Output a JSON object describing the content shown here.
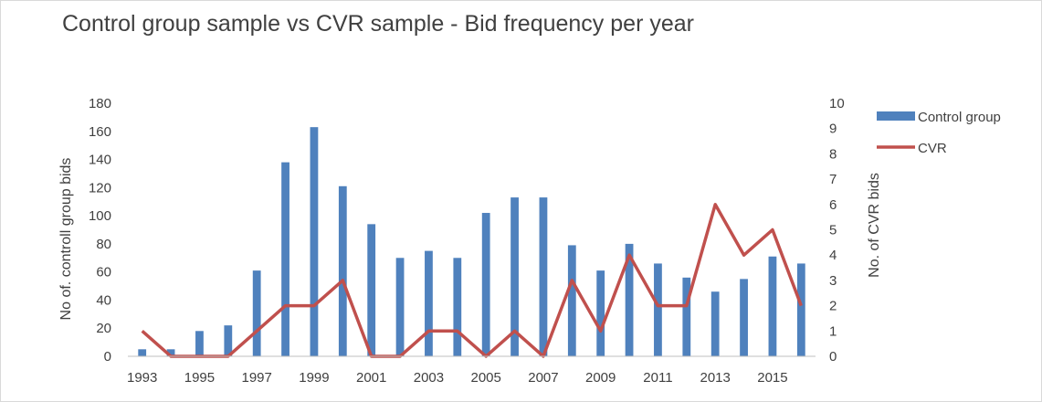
{
  "chart_data": {
    "type": "bar",
    "title": "Control group sample vs CVR sample - Bid frequency per year",
    "categories": [
      "1993",
      "1994",
      "1995",
      "1996",
      "1997",
      "1998",
      "1999",
      "2000",
      "2001",
      "2002",
      "2003",
      "2004",
      "2005",
      "2006",
      "2007",
      "2008",
      "2009",
      "2010",
      "2011",
      "2012",
      "2013",
      "2014",
      "2015",
      "2016"
    ],
    "x_tick_labels": [
      "1993",
      "1995",
      "1997",
      "1999",
      "2001",
      "2003",
      "2005",
      "2007",
      "2009",
      "2011",
      "2013",
      "2015"
    ],
    "series": [
      {
        "name": "Control group",
        "type": "bar",
        "axis": "left",
        "color": "#4f81bd",
        "values": [
          5,
          5,
          18,
          22,
          61,
          138,
          163,
          121,
          94,
          70,
          75,
          70,
          102,
          113,
          113,
          79,
          61,
          80,
          66,
          56,
          46,
          55,
          71,
          66
        ]
      },
      {
        "name": "CVR",
        "type": "line",
        "axis": "right",
        "color": "#c0504d",
        "values": [
          1,
          0,
          0,
          0,
          1,
          2,
          2,
          3,
          0,
          0,
          1,
          1,
          0,
          1,
          0,
          3,
          1,
          4,
          2,
          2,
          6,
          4,
          5,
          2
        ]
      }
    ],
    "ylabel_left": "No of. controll  group bids",
    "ylabel_right": "No. of CVR bids",
    "ylim_left": [
      0,
      180
    ],
    "ylim_right": [
      0,
      10
    ],
    "left_ticks": [
      "0",
      "20",
      "40",
      "60",
      "80",
      "100",
      "120",
      "140",
      "160",
      "180"
    ],
    "right_ticks": [
      "0",
      "1",
      "2",
      "3",
      "4",
      "5",
      "6",
      "7",
      "8",
      "9",
      "10"
    ],
    "legend_position": "right",
    "grid": false
  }
}
